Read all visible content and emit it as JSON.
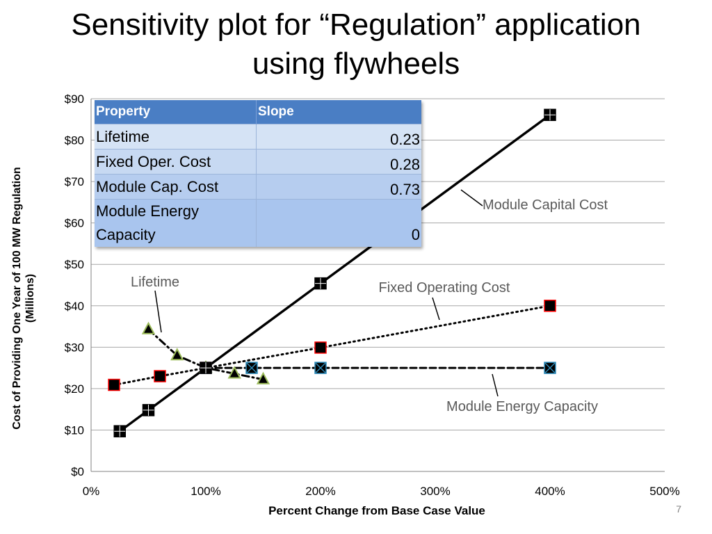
{
  "title_lines": [
    "Sensitivity plot for “Regulation” application",
    "using flywheels"
  ],
  "page_number": "7",
  "table": {
    "headers": [
      "Property",
      "Slope"
    ],
    "rows": [
      {
        "property": "Lifetime",
        "slope": "0.23"
      },
      {
        "property": "Fixed Oper. Cost",
        "slope": "0.28"
      },
      {
        "property": "Module Cap. Cost",
        "slope": "0.73"
      },
      {
        "property_lines": [
          "Module Energy",
          "Capacity"
        ],
        "slope": "0"
      }
    ]
  },
  "colors": {
    "marker_fill": "#ff0000",
    "table_header": "#4a7ec4",
    "lifetime_marker": "#9bbb59",
    "energy_marker": "#2f8fbf",
    "annotation_text": "#595959"
  },
  "chart_data": {
    "type": "line",
    "xlabel": "Percent Change from Base Case Value",
    "ylabel_lines": [
      "Cost of Providing One Year of 100 MW Regulation",
      "(Millions)"
    ],
    "xlim": [
      0,
      500
    ],
    "ylim": [
      0,
      90
    ],
    "x_ticks": [
      "0%",
      "100%",
      "200%",
      "300%",
      "400%",
      "500%"
    ],
    "y_ticks": [
      "$0",
      "$10",
      "$20",
      "$30",
      "$40",
      "$50",
      "$60",
      "$70",
      "$80",
      "$90"
    ],
    "grid": "horizontal",
    "series": [
      {
        "name": "Module Capital Cost",
        "marker": "square-plus",
        "line": "solid",
        "x": [
          25,
          50,
          100,
          200,
          400
        ],
        "y": [
          9.7,
          14.8,
          25,
          45.4,
          86.1
        ]
      },
      {
        "name": "Fixed Operating Cost",
        "marker": "square",
        "line": "dotted",
        "x": [
          20,
          60,
          100,
          200,
          400
        ],
        "y": [
          20.9,
          23,
          25,
          29.9,
          40
        ]
      },
      {
        "name": "Lifetime",
        "marker": "triangle",
        "line": "dash-dot",
        "x": [
          50,
          75,
          100,
          125,
          150
        ],
        "y": [
          34.3,
          28,
          25,
          23.6,
          22.2
        ]
      },
      {
        "name": "Module Energy Capacity",
        "marker": "square-x",
        "line": "dashed",
        "x": [
          100,
          140,
          200,
          400
        ],
        "y": [
          25,
          25,
          25,
          25
        ]
      }
    ]
  }
}
